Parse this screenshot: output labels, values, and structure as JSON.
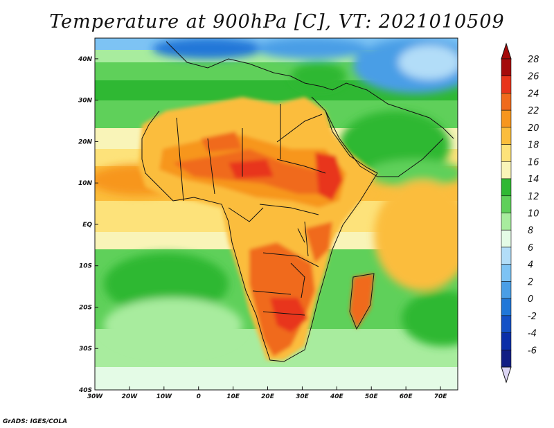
{
  "title": "Temperature at 900hPa [C], VT: 2021010509",
  "credit": "GrADS: IGES/COLA",
  "map": {
    "lon_range": [
      -30,
      75
    ],
    "lat_range": [
      -40,
      45
    ],
    "lon_ticks": [
      {
        "value": -30,
        "label": "30W"
      },
      {
        "value": -20,
        "label": "20W"
      },
      {
        "value": -10,
        "label": "10W"
      },
      {
        "value": 0,
        "label": "0"
      },
      {
        "value": 10,
        "label": "10E"
      },
      {
        "value": 20,
        "label": "20E"
      },
      {
        "value": 30,
        "label": "30E"
      },
      {
        "value": 40,
        "label": "40E"
      },
      {
        "value": 50,
        "label": "50E"
      },
      {
        "value": 60,
        "label": "60E"
      },
      {
        "value": 70,
        "label": "70E"
      }
    ],
    "lat_ticks": [
      {
        "value": 40,
        "label": "40N"
      },
      {
        "value": 30,
        "label": "30N"
      },
      {
        "value": 20,
        "label": "20N"
      },
      {
        "value": 10,
        "label": "10N"
      },
      {
        "value": 0,
        "label": "EQ"
      },
      {
        "value": -10,
        "label": "10S"
      },
      {
        "value": -20,
        "label": "20S"
      },
      {
        "value": -30,
        "label": "30S"
      },
      {
        "value": -40,
        "label": "40S"
      }
    ]
  },
  "colorbar": {
    "levels": [
      {
        "label": "28",
        "color": "#a50a0a"
      },
      {
        "label": "26",
        "color": "#e8341a"
      },
      {
        "label": "24",
        "color": "#f06a1c"
      },
      {
        "label": "22",
        "color": "#f7961e"
      },
      {
        "label": "20",
        "color": "#fbbd3c"
      },
      {
        "label": "18",
        "color": "#fde27a"
      },
      {
        "label": "16",
        "color": "#f9f4b8"
      },
      {
        "label": "14",
        "color": "#2fb833"
      },
      {
        "label": "12",
        "color": "#5fd05a"
      },
      {
        "label": "10",
        "color": "#a8ec9e"
      },
      {
        "label": "8",
        "color": "#e4fbe6"
      },
      {
        "label": "6",
        "color": "#b2ddf8"
      },
      {
        "label": "4",
        "color": "#7dc3f4"
      },
      {
        "label": "2",
        "color": "#4a9ee6"
      },
      {
        "label": "0",
        "color": "#2077d8"
      },
      {
        "label": "-2",
        "color": "#1451c6"
      },
      {
        "label": "-4",
        "color": "#0a2ea8"
      },
      {
        "label": "-6",
        "color": "#121e84"
      }
    ],
    "over_color": "#a50a0a",
    "under_color": "#ddd6f4"
  }
}
